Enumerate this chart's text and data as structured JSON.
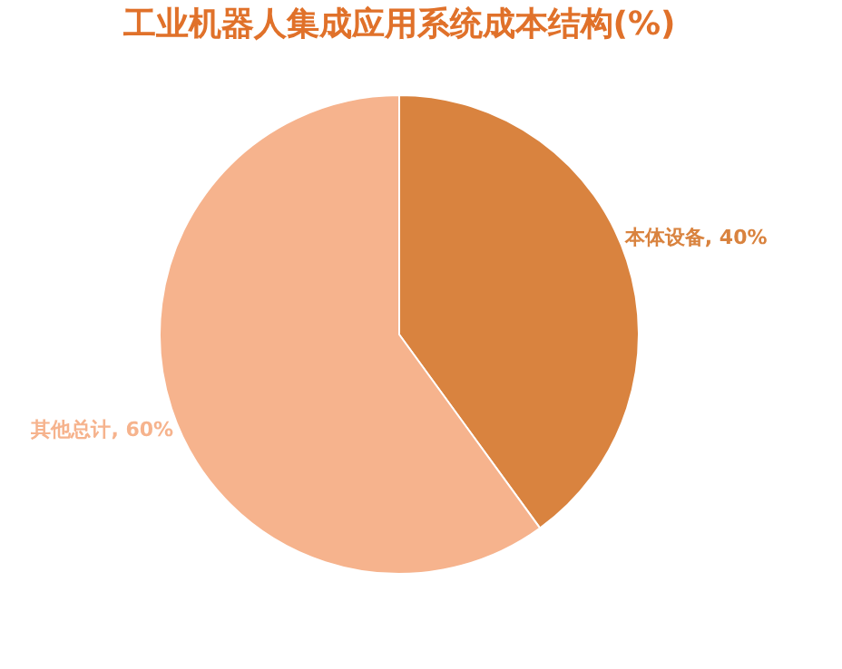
{
  "chart_data": {
    "type": "pie",
    "title": "工业机器人集成应用系统成本结构(%)",
    "categories": [
      "本体设备",
      "其他总计"
    ],
    "values": [
      40,
      60
    ],
    "colors": [
      "#d9833f",
      "#f6b38d"
    ],
    "value_labels": [
      "40%",
      "60%"
    ],
    "legend": false
  }
}
